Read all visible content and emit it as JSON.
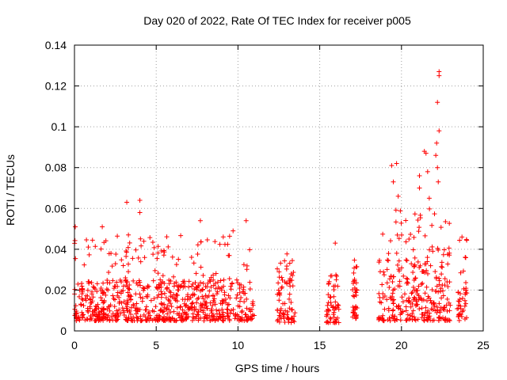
{
  "chart_data": {
    "type": "scatter",
    "title": "Day 020 of 2022, Rate Of TEC Index for receiver p005",
    "xlabel": "GPS time / hours",
    "ylabel": "ROTI / TECUs",
    "xlim": [
      0,
      25
    ],
    "ylim": [
      0,
      0.14
    ],
    "xticks": [
      0,
      5,
      10,
      15,
      20,
      25
    ],
    "xtick_labels": [
      "0",
      "5",
      "10",
      "15",
      "20",
      "25"
    ],
    "yticks": [
      0,
      0.02,
      0.04,
      0.06,
      0.08,
      0.1,
      0.12,
      0.14
    ],
    "ytick_labels": [
      "0",
      "0.02",
      "0.04",
      "0.06",
      "0.08",
      "0.1",
      "0.12",
      "0.14"
    ],
    "grid": true,
    "marker": "+",
    "marker_color": "#ff0000",
    "series": [
      {
        "name": "ROTI",
        "clusters": [
          {
            "x": [
              0.0,
              11.0
            ],
            "y_base": [
              0.005,
              0.025
            ],
            "y_peak": 0.047
          },
          {
            "x": [
              12.4,
              13.5
            ],
            "y_base": [
              0.004,
              0.03
            ],
            "y_peak": 0.038
          },
          {
            "x": [
              15.4,
              16.2
            ],
            "y_base": [
              0.004,
              0.025
            ],
            "y_peak": 0.028
          },
          {
            "x": [
              17.0,
              17.3
            ],
            "y_base": [
              0.006,
              0.03
            ],
            "y_peak": 0.035
          },
          {
            "x": [
              18.6,
              23.0
            ],
            "y_base": [
              0.005,
              0.035
            ],
            "y_peak": 0.06
          },
          {
            "x": [
              23.4,
              24.0
            ],
            "y_base": [
              0.005,
              0.03
            ],
            "y_peak": 0.045
          }
        ],
        "notable_points": [
          {
            "x": 0.05,
            "y": 0.051
          },
          {
            "x": 1.7,
            "y": 0.051
          },
          {
            "x": 3.2,
            "y": 0.063
          },
          {
            "x": 3.3,
            "y": 0.047
          },
          {
            "x": 4.0,
            "y": 0.064
          },
          {
            "x": 4.0,
            "y": 0.058
          },
          {
            "x": 7.7,
            "y": 0.054
          },
          {
            "x": 9.7,
            "y": 0.049
          },
          {
            "x": 10.5,
            "y": 0.054
          },
          {
            "x": 15.95,
            "y": 0.043
          },
          {
            "x": 19.4,
            "y": 0.081
          },
          {
            "x": 19.7,
            "y": 0.082
          },
          {
            "x": 19.5,
            "y": 0.073
          },
          {
            "x": 19.8,
            "y": 0.066
          },
          {
            "x": 21.1,
            "y": 0.076
          },
          {
            "x": 21.1,
            "y": 0.07
          },
          {
            "x": 21.4,
            "y": 0.088
          },
          {
            "x": 21.5,
            "y": 0.087
          },
          {
            "x": 21.6,
            "y": 0.078
          },
          {
            "x": 21.7,
            "y": 0.065
          },
          {
            "x": 22.1,
            "y": 0.086
          },
          {
            "x": 22.15,
            "y": 0.092
          },
          {
            "x": 22.2,
            "y": 0.08
          },
          {
            "x": 22.25,
            "y": 0.073
          },
          {
            "x": 22.2,
            "y": 0.112
          },
          {
            "x": 22.3,
            "y": 0.098
          },
          {
            "x": 22.3,
            "y": 0.125
          },
          {
            "x": 22.3,
            "y": 0.127
          },
          {
            "x": 23.7,
            "y": 0.046
          }
        ]
      }
    ]
  }
}
